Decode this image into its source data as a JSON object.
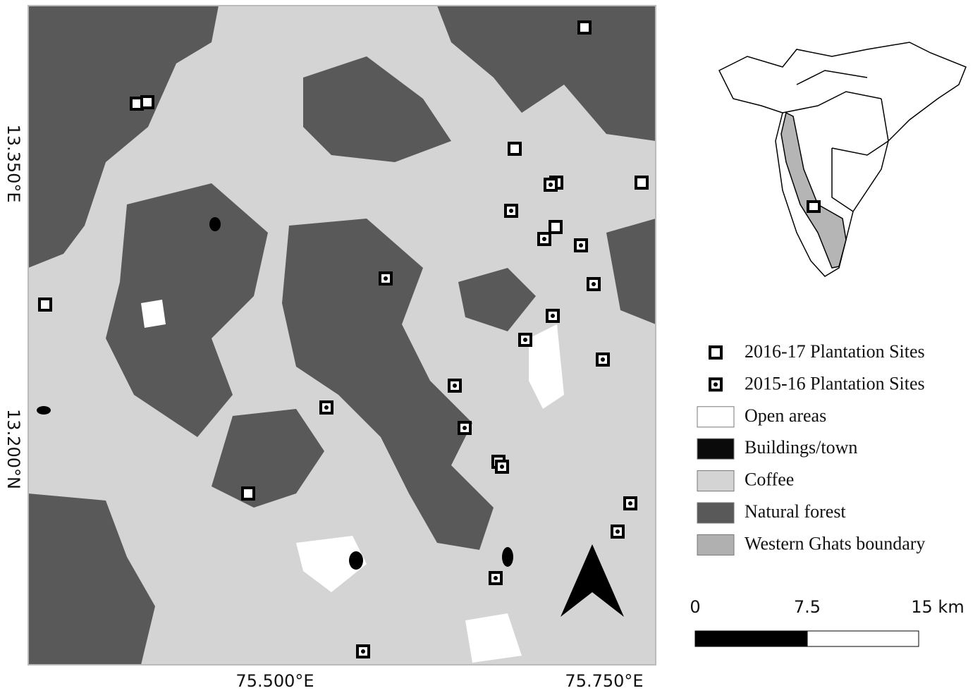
{
  "map": {
    "y_labels": [
      "13.350°E",
      "13.200°N"
    ],
    "x_labels": [
      "75.500°E",
      "75.750°E"
    ]
  },
  "legend": [
    "2016-17 Plantation Sites",
    "2015-16 Plantation Sites",
    "Open areas",
    "Buildings/town",
    "Coffee",
    "Natural forest",
    "Western Ghats boundary"
  ],
  "scale_bar": {
    "labels": [
      "0",
      "7.5",
      "15 km"
    ]
  }
}
